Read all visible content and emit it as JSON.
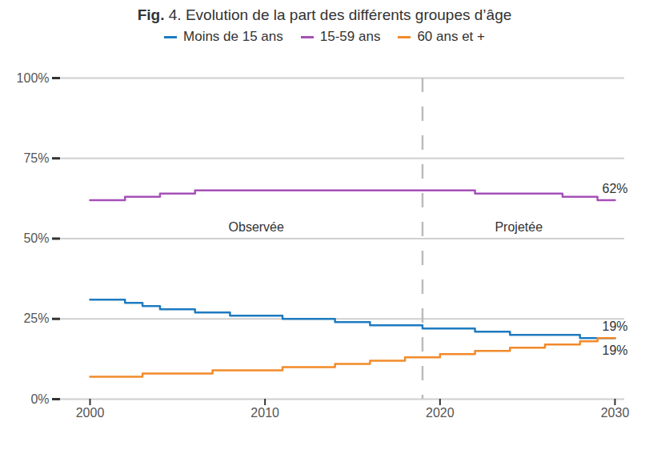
{
  "chart_data": {
    "type": "line",
    "title": "Fig. 4. Evolution de la part des différents groupes d’âge",
    "x": [
      2000,
      2001,
      2002,
      2003,
      2004,
      2005,
      2006,
      2007,
      2008,
      2009,
      2010,
      2011,
      2012,
      2013,
      2014,
      2015,
      2016,
      2017,
      2018,
      2019,
      2020,
      2021,
      2022,
      2023,
      2024,
      2025,
      2026,
      2027,
      2028,
      2029,
      2030
    ],
    "series": [
      {
        "name": "Moins de 15 ans",
        "color": "#1f7bc0",
        "end_label": "19%",
        "values": [
          31,
          31,
          30,
          29,
          28,
          28,
          27,
          27,
          26,
          26,
          26,
          25,
          25,
          25,
          24,
          24,
          23,
          23,
          23,
          22,
          22,
          22,
          21,
          21,
          20,
          20,
          20,
          20,
          19,
          19,
          19
        ]
      },
      {
        "name": "15-59 ans",
        "color": "#a650b8",
        "end_label": "62%",
        "values": [
          62,
          62,
          63,
          63,
          64,
          64,
          65,
          65,
          65,
          65,
          65,
          65,
          65,
          65,
          65,
          65,
          65,
          65,
          65,
          65,
          65,
          65,
          64,
          64,
          64,
          64,
          64,
          63,
          63,
          62,
          62
        ]
      },
      {
        "name": "60 ans et +",
        "color": "#f28a2a",
        "end_label": "19%",
        "values": [
          7,
          7,
          7,
          8,
          8,
          8,
          8,
          9,
          9,
          9,
          9,
          10,
          10,
          10,
          11,
          11,
          12,
          12,
          13,
          13,
          14,
          14,
          15,
          15,
          16,
          16,
          17,
          17,
          18,
          19,
          19
        ]
      }
    ],
    "projection_start": 2019,
    "annotations": [
      {
        "text": "Observée"
      },
      {
        "text": "Projetée"
      }
    ],
    "xlim": [
      2000,
      2030
    ],
    "xticks": [
      2000,
      2010,
      2020,
      2030
    ],
    "ylim": [
      0,
      100
    ],
    "yticks": [
      {
        "value": 0,
        "label": "0%"
      },
      {
        "value": 25,
        "label": "25%"
      },
      {
        "value": 50,
        "label": "50%"
      },
      {
        "value": 75,
        "label": "75%"
      },
      {
        "value": 100,
        "label": "100%"
      }
    ],
    "grid": true,
    "legend": "top"
  }
}
